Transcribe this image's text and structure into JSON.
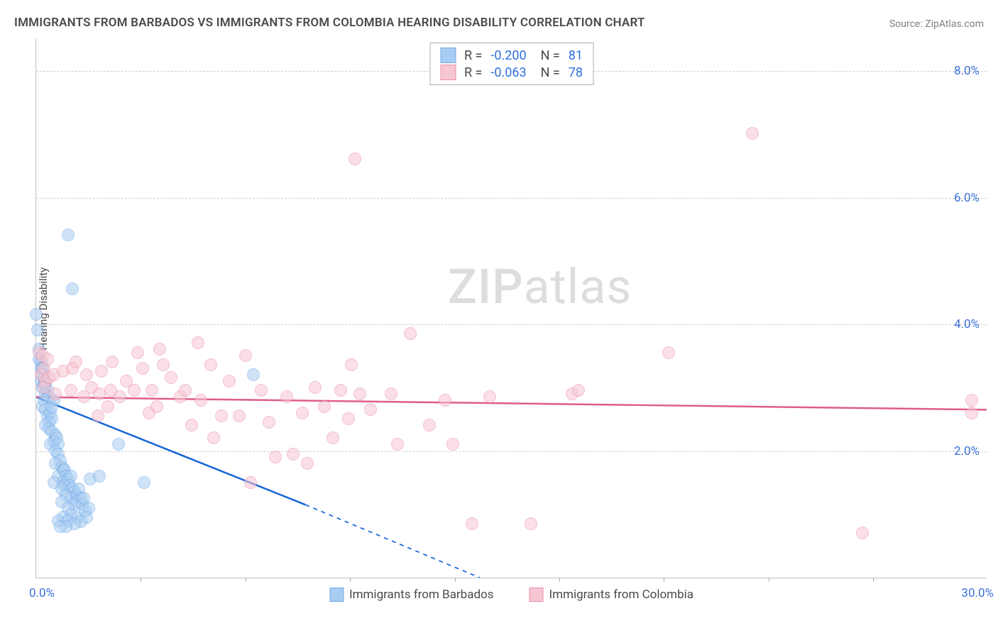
{
  "title": "IMMIGRANTS FROM BARBADOS VS IMMIGRANTS FROM COLOMBIA HEARING DISABILITY CORRELATION CHART",
  "source": "Source: ZipAtlas.com",
  "y_axis_label": "Hearing Disability",
  "watermark": {
    "part1": "ZIP",
    "part2": "atlas"
  },
  "chart": {
    "type": "scatter",
    "background_color": "#ffffff",
    "grid_color": "#cfcfcf",
    "axis_color": "#c0c0c0",
    "tick_label_color": "#3a6fd8",
    "title_color": "#4a4a4a",
    "title_fontsize": 17,
    "label_fontsize": 15,
    "tick_fontsize": 17,
    "xlim": [
      0,
      30
    ],
    "ylim": [
      0,
      8.5
    ],
    "x_ticks_labeled": {
      "0": "0.0%",
      "30": "30.0%"
    },
    "x_ticks_minor": [
      3.3,
      6.6,
      9.9,
      13.2,
      16.5,
      19.8,
      23.1,
      26.4
    ],
    "y_ticks": [
      2,
      4,
      6,
      8
    ],
    "y_tick_labels": [
      "2.0%",
      "4.0%",
      "6.0%",
      "8.0%"
    ],
    "marker_radius": 9,
    "marker_border_width": 1.5,
    "series": [
      {
        "name": "Immigrants from Barbados",
        "fill_color": "#a9cdf2",
        "fill_opacity": 0.55,
        "stroke_color": "#6fa8e8",
        "trend_color": "#1565d8",
        "trend_width": 2.5,
        "trend": {
          "x1": 0,
          "y1": 2.85,
          "x2_solid": 8.5,
          "y2_solid": 1.15,
          "x2_dash": 14,
          "y2_dash": 0
        },
        "R": "-0.200",
        "N": "81",
        "points": [
          [
            0.0,
            4.15
          ],
          [
            0.05,
            3.9
          ],
          [
            0.1,
            3.6
          ],
          [
            0.1,
            3.45
          ],
          [
            0.15,
            3.4
          ],
          [
            0.15,
            3.3
          ],
          [
            0.2,
            3.3
          ],
          [
            0.2,
            3.2
          ],
          [
            0.15,
            3.1
          ],
          [
            0.25,
            3.15
          ],
          [
            0.25,
            3.05
          ],
          [
            0.2,
            3.0
          ],
          [
            0.3,
            3.05
          ],
          [
            0.3,
            2.9
          ],
          [
            0.35,
            2.95
          ],
          [
            0.4,
            2.85
          ],
          [
            0.25,
            2.8
          ],
          [
            0.2,
            2.7
          ],
          [
            0.3,
            2.65
          ],
          [
            0.35,
            2.55
          ],
          [
            0.45,
            2.6
          ],
          [
            0.5,
            2.7
          ],
          [
            0.55,
            2.8
          ],
          [
            0.5,
            2.5
          ],
          [
            0.4,
            2.45
          ],
          [
            0.3,
            2.4
          ],
          [
            0.4,
            2.35
          ],
          [
            0.5,
            2.3
          ],
          [
            0.6,
            2.25
          ],
          [
            0.55,
            2.15
          ],
          [
            0.45,
            2.1
          ],
          [
            0.65,
            2.2
          ],
          [
            0.7,
            2.1
          ],
          [
            0.6,
            2.0
          ],
          [
            0.7,
            1.95
          ],
          [
            0.75,
            1.85
          ],
          [
            0.6,
            1.8
          ],
          [
            0.8,
            1.75
          ],
          [
            0.85,
            1.7
          ],
          [
            0.7,
            1.6
          ],
          [
            0.9,
            1.7
          ],
          [
            0.95,
            1.6
          ],
          [
            0.55,
            1.5
          ],
          [
            0.85,
            1.5
          ],
          [
            0.9,
            1.45
          ],
          [
            1.0,
            1.55
          ],
          [
            1.1,
            1.6
          ],
          [
            1.05,
            1.45
          ],
          [
            0.8,
            1.4
          ],
          [
            1.15,
            1.4
          ],
          [
            1.2,
            1.35
          ],
          [
            0.95,
            1.3
          ],
          [
            1.1,
            1.25
          ],
          [
            1.3,
            1.3
          ],
          [
            1.35,
            1.4
          ],
          [
            1.25,
            1.2
          ],
          [
            1.4,
            1.25
          ],
          [
            1.2,
            1.15
          ],
          [
            0.8,
            1.2
          ],
          [
            1.0,
            1.1
          ],
          [
            1.45,
            1.15
          ],
          [
            1.5,
            1.25
          ],
          [
            1.1,
            1.0
          ],
          [
            0.85,
            0.95
          ],
          [
            0.7,
            0.9
          ],
          [
            1.0,
            0.9
          ],
          [
            1.3,
            0.95
          ],
          [
            1.55,
            1.05
          ],
          [
            1.65,
            1.1
          ],
          [
            1.6,
            0.95
          ],
          [
            1.4,
            0.88
          ],
          [
            1.2,
            0.85
          ],
          [
            0.95,
            0.8
          ],
          [
            0.75,
            0.8
          ],
          [
            1.7,
            1.55
          ],
          [
            2.0,
            1.6
          ],
          [
            2.6,
            2.1
          ],
          [
            3.4,
            1.5
          ],
          [
            1.0,
            5.4
          ],
          [
            1.15,
            4.55
          ],
          [
            6.85,
            3.2
          ]
        ]
      },
      {
        "name": "Immigrants from Colombia",
        "fill_color": "#f6c6d2",
        "fill_opacity": 0.55,
        "stroke_color": "#eb8fa9",
        "trend_color": "#e05c8b",
        "trend_width": 2.5,
        "trend": {
          "x1": 0,
          "y1": 2.85,
          "x2_solid": 30,
          "y2_solid": 2.65,
          "x2_dash": 30,
          "y2_dash": 2.65
        },
        "R": "-0.063",
        "N": "78",
        "points": [
          [
            0.1,
            3.55
          ],
          [
            0.2,
            3.5
          ],
          [
            0.15,
            3.2
          ],
          [
            0.25,
            3.3
          ],
          [
            0.3,
            3.1
          ],
          [
            0.25,
            3.0
          ],
          [
            0.35,
            3.45
          ],
          [
            0.4,
            3.15
          ],
          [
            0.55,
            3.2
          ],
          [
            0.6,
            2.9
          ],
          [
            0.85,
            3.25
          ],
          [
            1.1,
            2.95
          ],
          [
            1.15,
            3.3
          ],
          [
            1.25,
            3.4
          ],
          [
            1.5,
            2.85
          ],
          [
            1.6,
            3.2
          ],
          [
            1.75,
            3.0
          ],
          [
            2.05,
            3.25
          ],
          [
            2.25,
            2.7
          ],
          [
            2.35,
            2.95
          ],
          [
            2.4,
            3.4
          ],
          [
            2.65,
            2.85
          ],
          [
            2.85,
            3.1
          ],
          [
            3.1,
            2.95
          ],
          [
            3.35,
            3.3
          ],
          [
            3.55,
            2.6
          ],
          [
            3.65,
            2.95
          ],
          [
            3.8,
            2.7
          ],
          [
            3.9,
            3.6
          ],
          [
            4.25,
            3.15
          ],
          [
            4.55,
            2.85
          ],
          [
            4.9,
            2.4
          ],
          [
            5.1,
            3.7
          ],
          [
            5.2,
            2.8
          ],
          [
            5.5,
            3.35
          ],
          [
            5.6,
            2.2
          ],
          [
            5.85,
            2.55
          ],
          [
            6.1,
            3.1
          ],
          [
            6.4,
            2.55
          ],
          [
            6.6,
            3.5
          ],
          [
            6.75,
            1.5
          ],
          [
            7.1,
            2.95
          ],
          [
            7.35,
            2.45
          ],
          [
            7.55,
            1.9
          ],
          [
            7.9,
            2.85
          ],
          [
            8.1,
            1.95
          ],
          [
            8.4,
            2.6
          ],
          [
            8.55,
            1.8
          ],
          [
            8.8,
            3.0
          ],
          [
            9.1,
            2.7
          ],
          [
            9.35,
            2.2
          ],
          [
            9.6,
            2.95
          ],
          [
            9.85,
            2.5
          ],
          [
            9.95,
            3.35
          ],
          [
            10.2,
            2.9
          ],
          [
            10.05,
            6.6
          ],
          [
            10.55,
            2.65
          ],
          [
            11.2,
            2.9
          ],
          [
            11.4,
            2.1
          ],
          [
            11.8,
            3.85
          ],
          [
            12.4,
            2.4
          ],
          [
            12.9,
            2.8
          ],
          [
            13.15,
            2.1
          ],
          [
            13.75,
            0.85
          ],
          [
            14.3,
            2.85
          ],
          [
            15.6,
            0.85
          ],
          [
            16.9,
            2.9
          ],
          [
            17.1,
            2.95
          ],
          [
            19.95,
            3.55
          ],
          [
            22.6,
            7.0
          ],
          [
            26.05,
            0.7
          ],
          [
            29.5,
            2.8
          ],
          [
            29.5,
            2.6
          ],
          [
            1.95,
            2.55
          ],
          [
            4.0,
            3.35
          ],
          [
            3.2,
            3.55
          ],
          [
            2.0,
            2.9
          ],
          [
            4.7,
            2.95
          ]
        ]
      }
    ]
  },
  "legend_top_labels": {
    "R": "R =",
    "N": "N ="
  },
  "legend_bottom": {
    "series1_label": "Immigrants from Barbados",
    "series2_label": "Immigrants from Colombia"
  }
}
